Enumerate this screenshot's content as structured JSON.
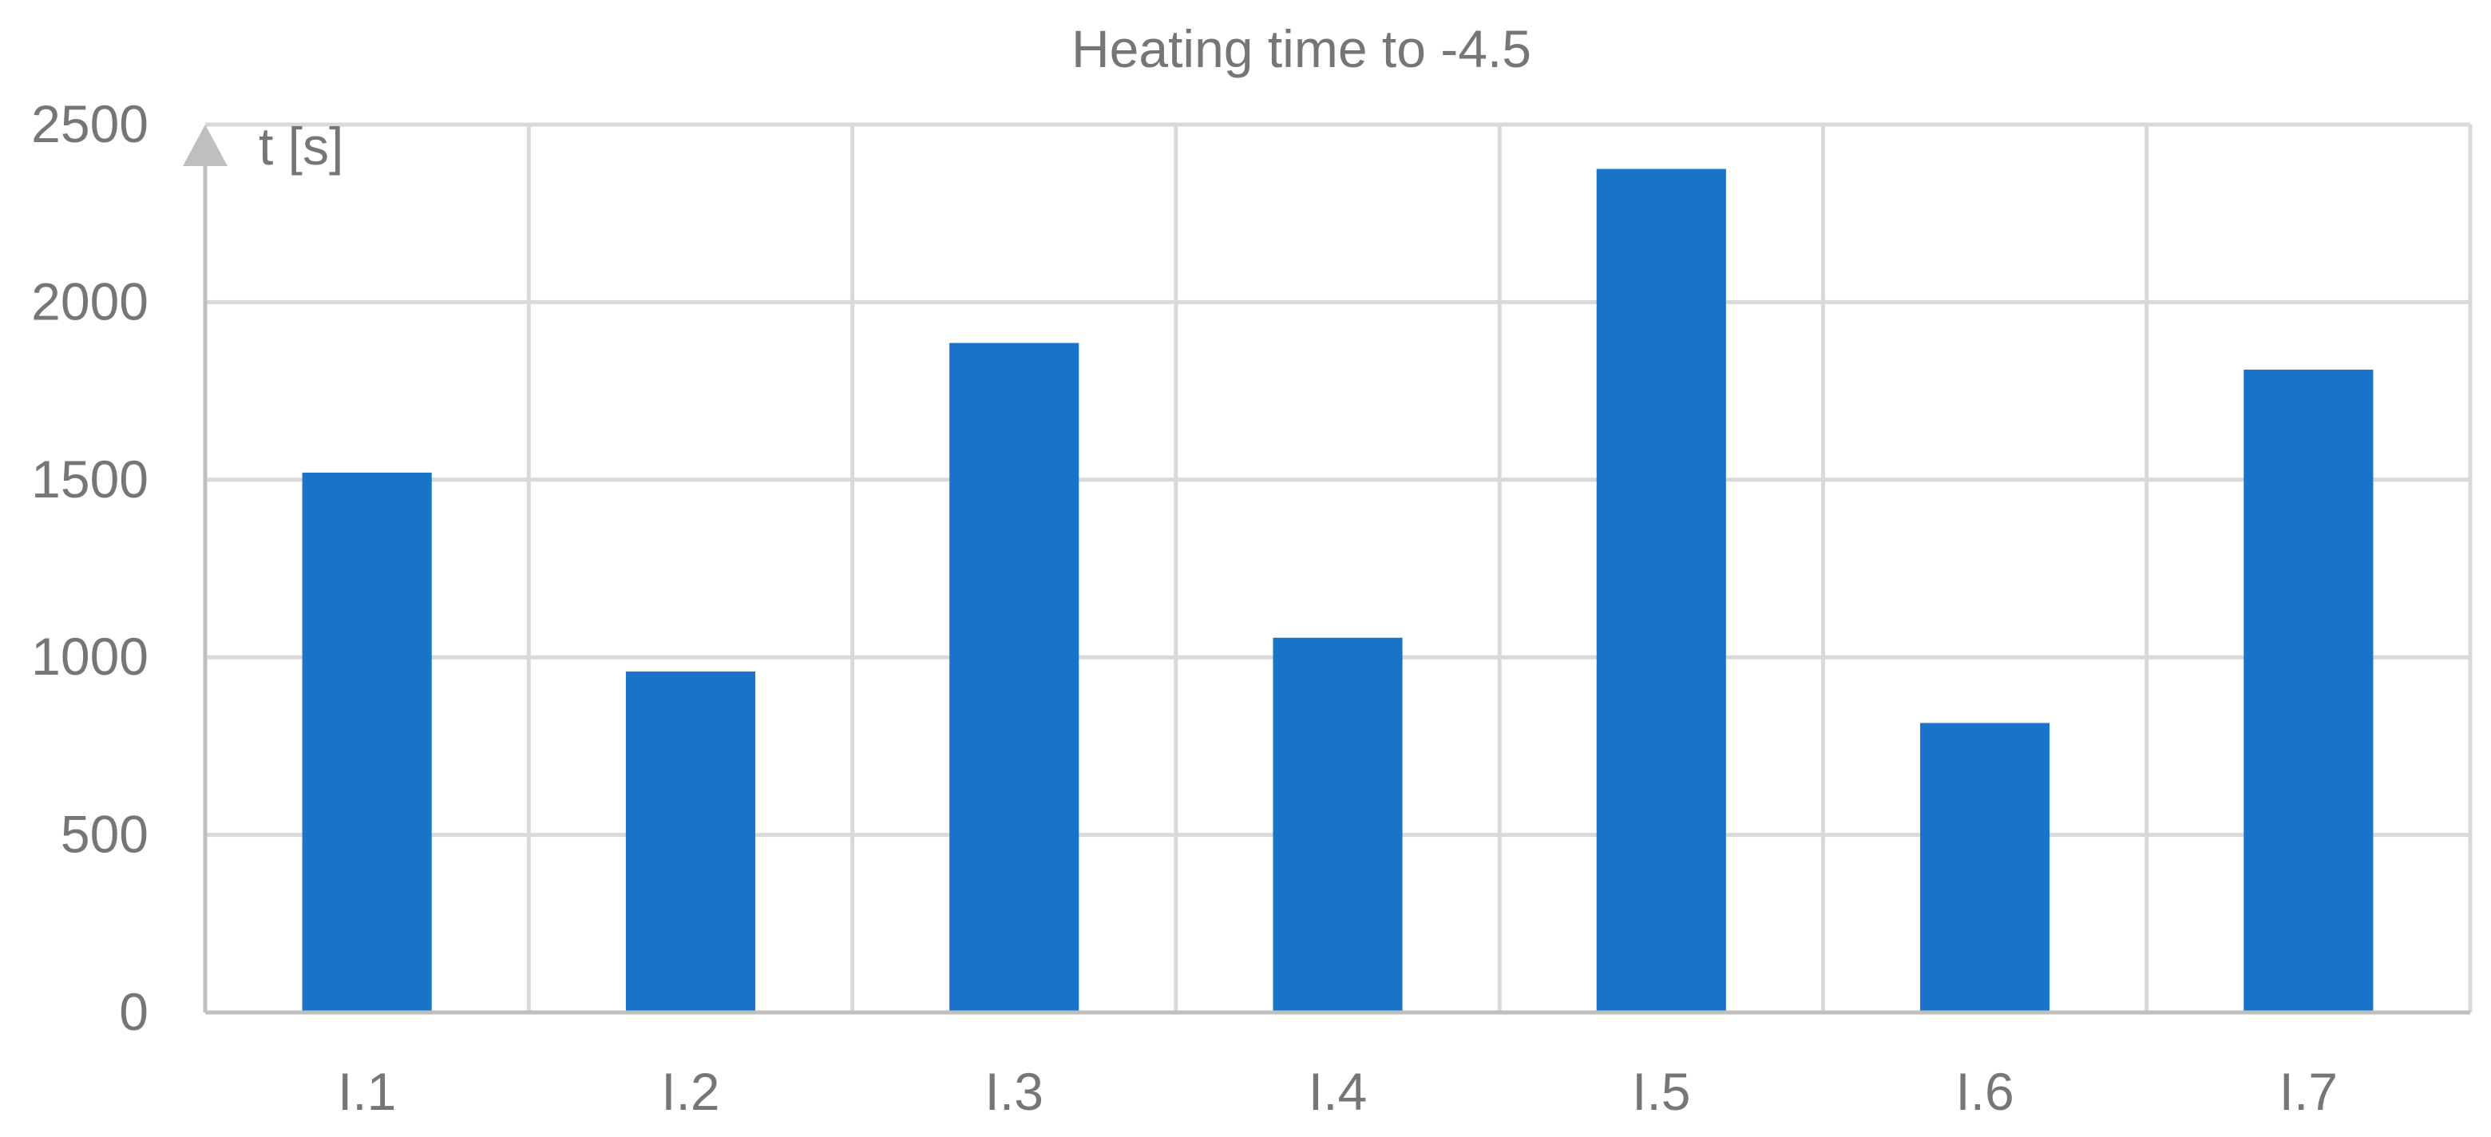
{
  "chart_data": {
    "type": "bar",
    "title": "Heating time to -4.5",
    "ylabel": "t [s]",
    "xlabel": "",
    "categories": [
      "I.1",
      "I.2",
      "I.3",
      "I.4",
      "I.5",
      "I.6",
      "I.7"
    ],
    "values": [
      1520,
      960,
      1885,
      1055,
      2375,
      815,
      1810
    ],
    "ylim": [
      0,
      2500
    ],
    "yticks": [
      0,
      500,
      1000,
      1500,
      2000,
      2500
    ],
    "grid": true,
    "legend": "none",
    "colors": {
      "bar": "#1874C8",
      "grid": "#D9D9D9",
      "axis": "#BFBFBF",
      "text": "#767676"
    }
  }
}
